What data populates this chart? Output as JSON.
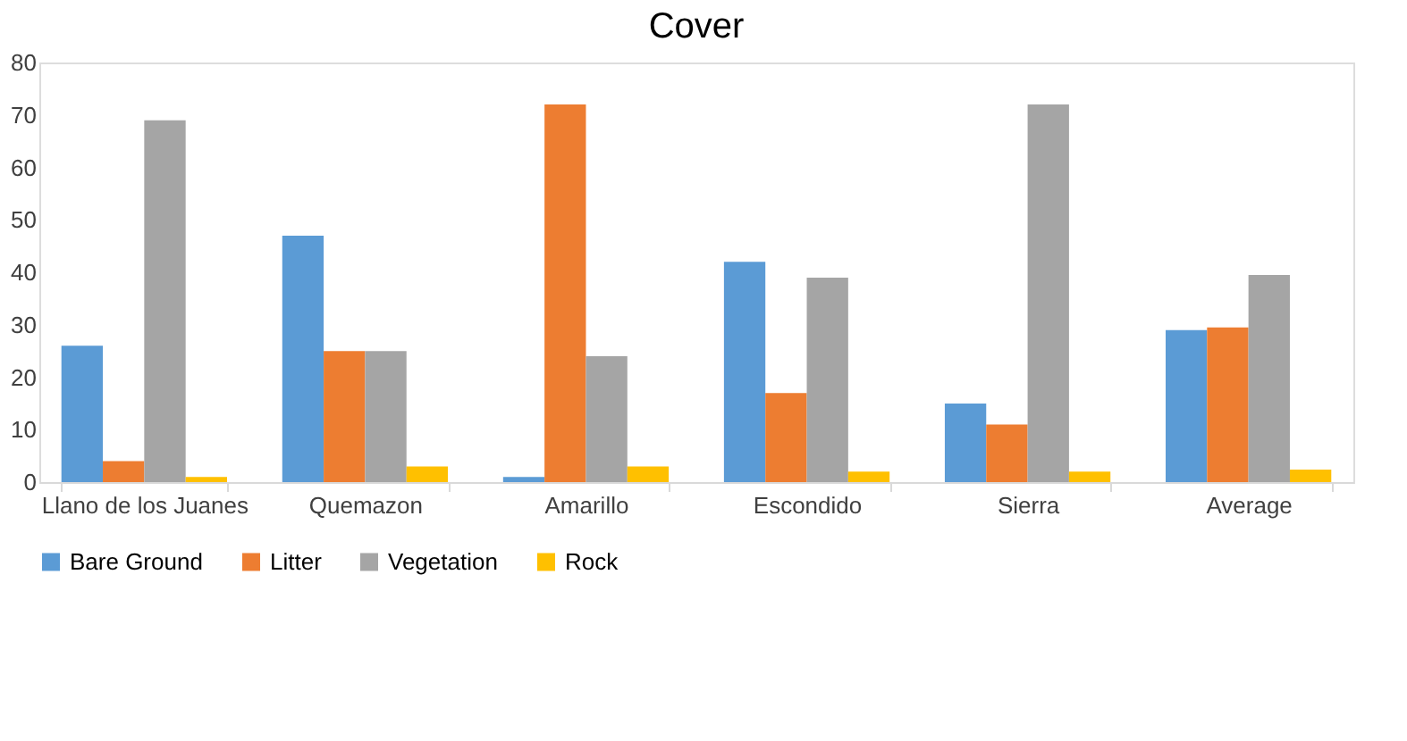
{
  "chart_data": {
    "type": "bar",
    "title": "Cover",
    "categories": [
      "Llano de los Juanes",
      "Quemazon",
      "Amarillo",
      "Escondido",
      "Sierra",
      "Average"
    ],
    "series": [
      {
        "name": "Bare Ground",
        "color": "#5b9bd5",
        "values": [
          26,
          47,
          1,
          42,
          15,
          29
        ]
      },
      {
        "name": "Litter",
        "color": "#ed7d31",
        "values": [
          4,
          25,
          72,
          17,
          11,
          29.5
        ]
      },
      {
        "name": "Vegetation",
        "color": "#a5a5a5",
        "values": [
          69,
          25,
          24,
          39,
          72,
          39.5
        ]
      },
      {
        "name": "Rock",
        "color": "#ffc000",
        "values": [
          1,
          3,
          3,
          2,
          2,
          2.4
        ]
      }
    ],
    "ylim": [
      0,
      80
    ],
    "yticks": [
      0,
      10,
      20,
      30,
      40,
      50,
      60,
      70,
      80
    ],
    "grid": false,
    "legend": "bottom"
  }
}
